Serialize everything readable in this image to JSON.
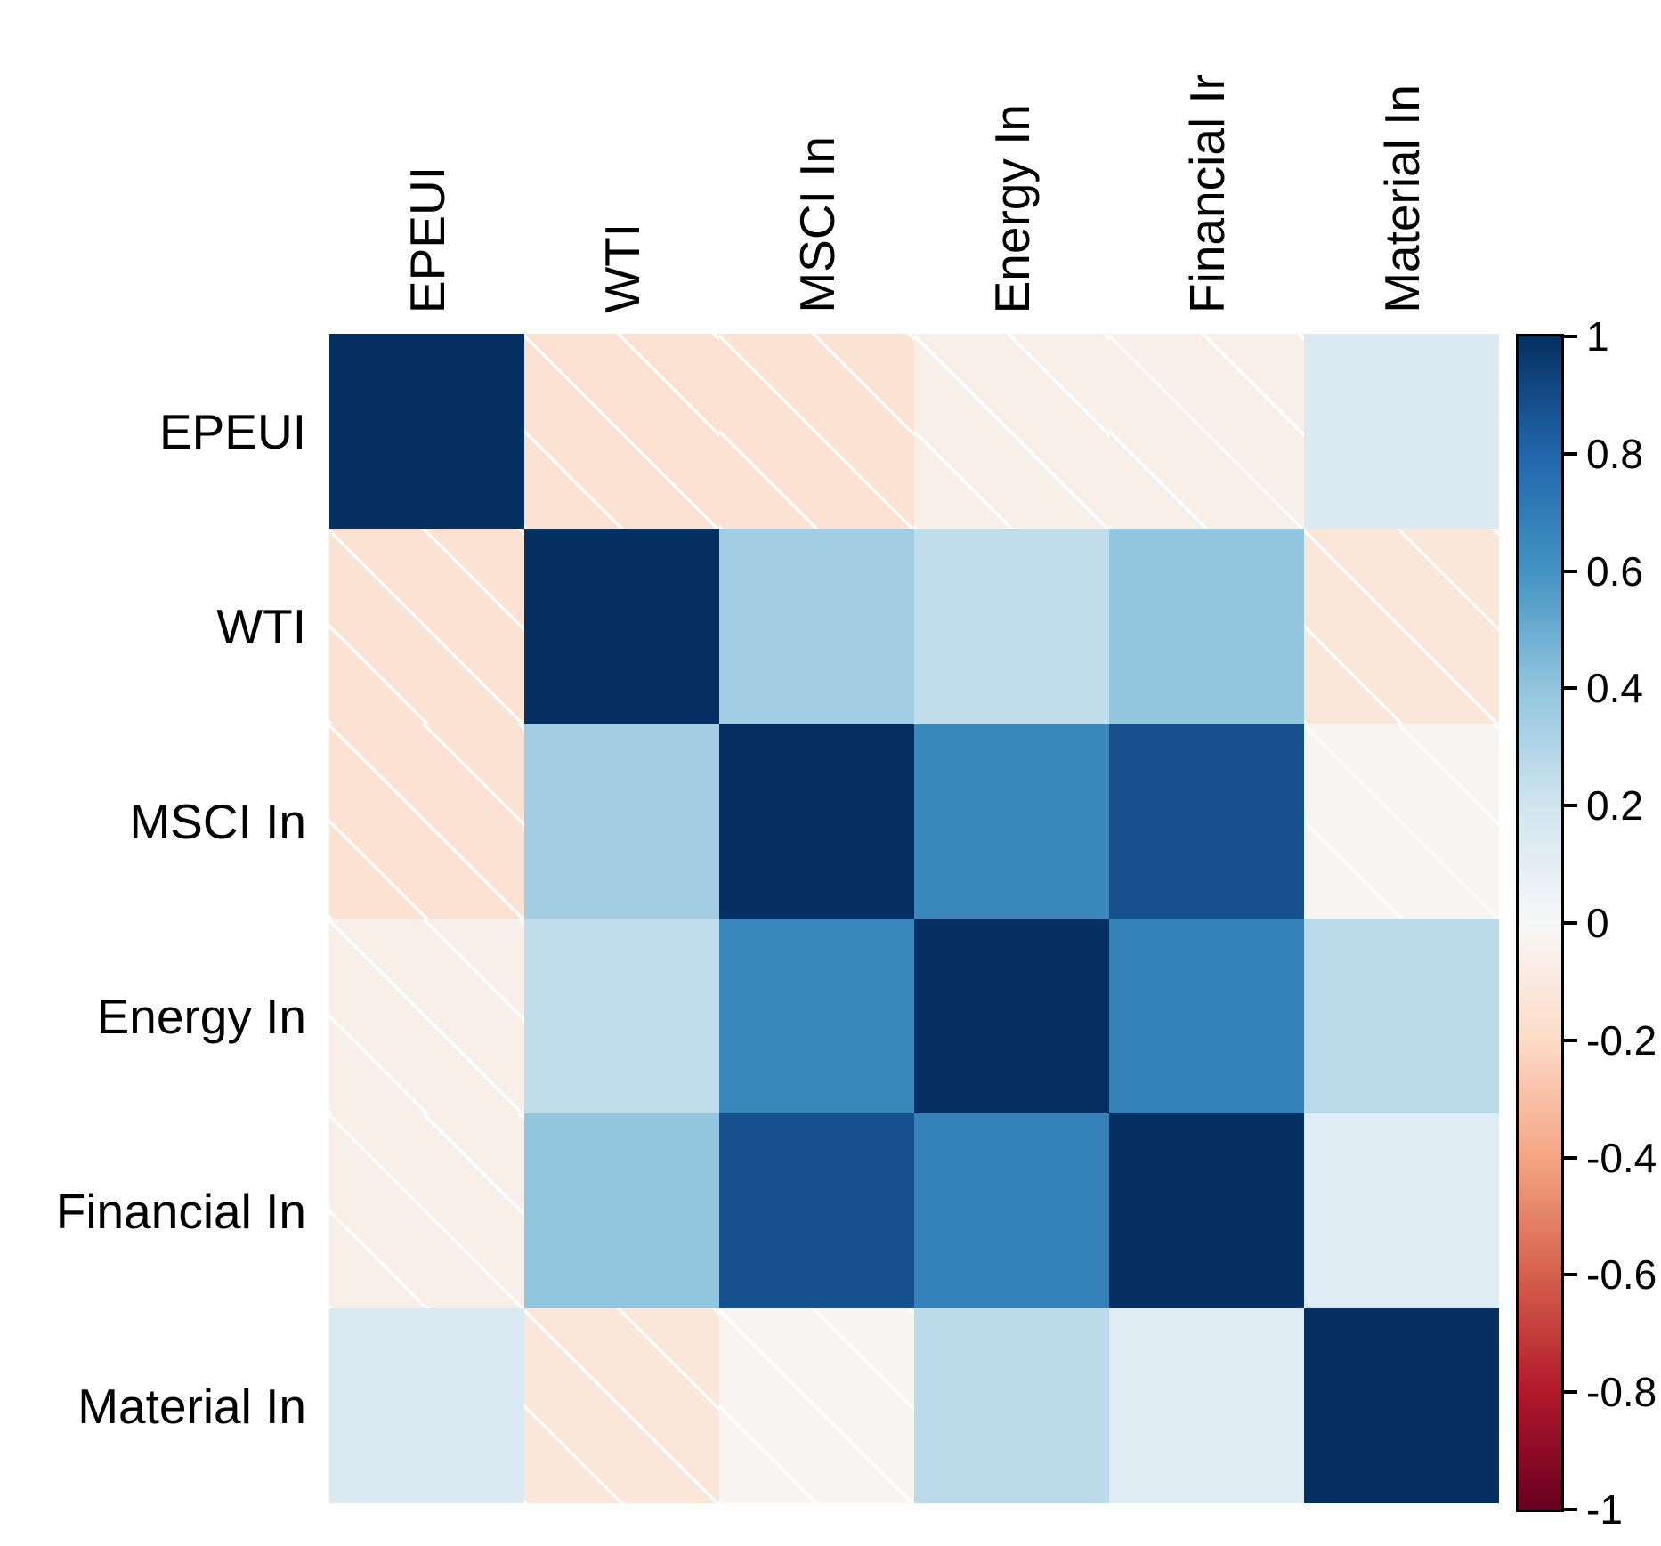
{
  "chart_data": {
    "type": "heatmap",
    "title": "",
    "description": "Correlation matrix heatmap with blue-red diverging colormap; white diagonal hatching marks weak/insignificant cells",
    "row_labels": [
      "EPEUI",
      "WTI",
      "MSCI In",
      "Energy In",
      "Financial In",
      "Material In"
    ],
    "col_labels": [
      "EPEUI",
      "WTI",
      "MSCI In",
      "Energy In",
      "Financial Ir",
      "Material In"
    ],
    "matrix": [
      [
        1.0,
        -0.15,
        -0.15,
        -0.06,
        -0.06,
        0.15
      ],
      [
        -0.15,
        1.0,
        0.35,
        0.25,
        0.4,
        -0.12
      ],
      [
        -0.15,
        0.35,
        1.0,
        0.65,
        0.88,
        -0.02
      ],
      [
        -0.06,
        0.25,
        0.65,
        1.0,
        0.68,
        0.27
      ],
      [
        -0.06,
        0.4,
        0.88,
        0.68,
        1.0,
        0.12
      ],
      [
        0.15,
        -0.12,
        -0.02,
        0.27,
        0.12,
        1.0
      ]
    ],
    "hatched": [
      [
        false,
        true,
        true,
        true,
        true,
        false
      ],
      [
        true,
        false,
        false,
        false,
        false,
        true
      ],
      [
        true,
        false,
        false,
        false,
        false,
        true
      ],
      [
        true,
        false,
        false,
        false,
        false,
        false
      ],
      [
        true,
        false,
        false,
        false,
        false,
        false
      ],
      [
        false,
        true,
        true,
        false,
        false,
        false
      ]
    ],
    "colormap": {
      "name": "RdBu",
      "stops": [
        {
          "value": 1.0,
          "color": "#053061"
        },
        {
          "value": 0.8,
          "color": "#2166ac"
        },
        {
          "value": 0.6,
          "color": "#4393c3"
        },
        {
          "value": 0.4,
          "color": "#92c5de"
        },
        {
          "value": 0.2,
          "color": "#d1e5f0"
        },
        {
          "value": 0.0,
          "color": "#f7f7f7"
        },
        {
          "value": -0.2,
          "color": "#fddbc7"
        },
        {
          "value": -0.4,
          "color": "#f4a582"
        },
        {
          "value": -0.6,
          "color": "#d6604d"
        },
        {
          "value": -0.8,
          "color": "#b2182b"
        },
        {
          "value": -1.0,
          "color": "#67001f"
        }
      ],
      "hatch_color": "#ffffff"
    },
    "colorbar": {
      "min": -1,
      "max": 1,
      "tick_labels": [
        "1",
        "0.8",
        "0.6",
        "0.4",
        "0.2",
        "0",
        "-0.2",
        "-0.4",
        "-0.6",
        "-0.8",
        "-1"
      ],
      "position": "right"
    },
    "layout_hints": {
      "grid_on": false,
      "legend": "colorbar-right",
      "background": "#ffffff"
    }
  }
}
